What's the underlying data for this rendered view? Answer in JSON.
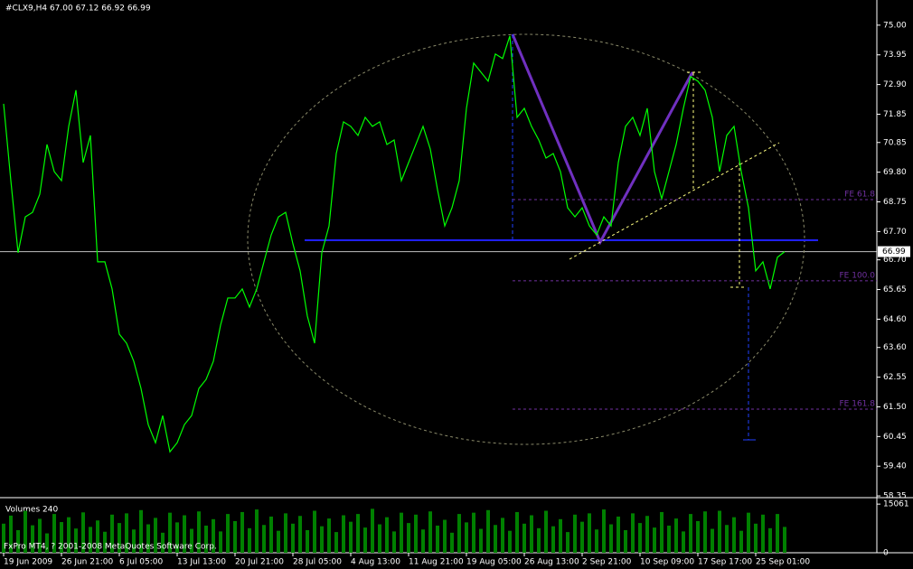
{
  "chart_data": [
    {
      "type": "line",
      "title": "#CLX9,H4  67.00 67.12 66.92 66.99",
      "footer": "FxPro MT4, ? 2001-2008 MetaQuotes Software Corp.",
      "categories": [
        "19 Jun 2009",
        null,
        null,
        null,
        null,
        null,
        null,
        null,
        "26 Jun 21:00",
        null,
        null,
        null,
        null,
        null,
        null,
        null,
        "6 Jul 05:00",
        null,
        null,
        null,
        null,
        null,
        null,
        null,
        "13 Jul 13:00",
        null,
        null,
        null,
        null,
        null,
        null,
        null,
        "20 Jul 21:00",
        null,
        null,
        null,
        null,
        null,
        null,
        null,
        "28 Jul 05:00",
        null,
        null,
        null,
        null,
        null,
        null,
        null,
        "4 Aug 13:00",
        null,
        null,
        null,
        null,
        null,
        null,
        null,
        "11 Aug 21:00",
        null,
        null,
        null,
        null,
        null,
        null,
        null,
        "19 Aug 05:00",
        null,
        null,
        null,
        null,
        null,
        null,
        null,
        "26 Aug 13:00",
        null,
        null,
        null,
        null,
        null,
        null,
        null,
        "2 Sep 21:00",
        null,
        null,
        null,
        null,
        null,
        null,
        null,
        "10 Sep 09:00",
        null,
        null,
        null,
        null,
        null,
        null,
        null,
        "17 Sep 17:00",
        null,
        null,
        null,
        null,
        null,
        null,
        null,
        "25 Sep 01:00",
        null,
        null,
        null,
        null
      ],
      "values": [
        72.22,
        69.5,
        66.95,
        68.22,
        68.38,
        69.02,
        70.78,
        69.82,
        69.5,
        71.42,
        72.7,
        70.14,
        71.1,
        66.63,
        66.63,
        65.67,
        64.07,
        63.75,
        63.11,
        62.15,
        60.87,
        60.23,
        61.19,
        59.91,
        60.23,
        60.87,
        61.19,
        62.15,
        62.47,
        63.11,
        64.39,
        65.35,
        65.35,
        65.67,
        65.03,
        65.67,
        66.63,
        67.58,
        68.22,
        68.38,
        67.27,
        66.31,
        64.71,
        63.75,
        66.95,
        67.9,
        70.46,
        71.58,
        71.42,
        71.1,
        71.74,
        71.42,
        71.58,
        70.78,
        70.94,
        69.5,
        70.14,
        70.78,
        71.42,
        70.62,
        69.18,
        67.9,
        68.54,
        69.5,
        72.06,
        73.66,
        73.34,
        73.02,
        73.98,
        73.82,
        74.62,
        71.74,
        72.06,
        71.42,
        70.94,
        70.3,
        70.46,
        69.82,
        68.54,
        68.22,
        68.54,
        67.9,
        67.58,
        68.22,
        67.9,
        70.14,
        71.42,
        71.74,
        71.1,
        72.06,
        69.82,
        68.86,
        69.82,
        70.78,
        72.06,
        73.18,
        73.02,
        72.7,
        71.74,
        69.82,
        71.1,
        71.42,
        69.82,
        68.54,
        66.31,
        66.63,
        65.67,
        66.79,
        66.99
      ],
      "color": "#00ff00",
      "ylim": [
        58.32,
        75.89
      ],
      "yticks": [
        {
          "value": 75,
          "label": "75.00"
        },
        73.95,
        {
          "value": 72.9,
          "label": "72.90"
        },
        71.85,
        70.85,
        {
          "value": 69.8,
          "label": "69.80"
        },
        68.75,
        {
          "value": 67.7,
          "label": "67.70"
        },
        {
          "value": 66.7,
          "label": "66.70"
        },
        65.65,
        {
          "value": 64.6,
          "label": "64.60"
        },
        {
          "value": 63.6,
          "label": "63.60"
        },
        62.55,
        {
          "value": 61.5,
          "label": "61.50"
        },
        60.45,
        {
          "value": 59.4,
          "label": "59.40"
        },
        58.35
      ],
      "fib_levels": [
        {
          "label": "FE 61.8",
          "value": 68.83
        },
        {
          "label": "FE 100.0",
          "value": 65.96
        },
        {
          "label": "FE 161.8",
          "value": 61.42
        }
      ]
    },
    {
      "type": "bar",
      "title": "Volumes 240",
      "color": "#008000",
      "values": [
        9000,
        11500,
        7000,
        13000,
        8500,
        10500,
        6000,
        12000,
        9500,
        11000,
        7500,
        12500,
        8000,
        10000,
        6500,
        11800,
        9200,
        12200,
        7200,
        13200,
        8800,
        10800,
        6200,
        12400,
        9400,
        11600,
        7400,
        12800,
        8400,
        10400,
        6600,
        12000,
        9800,
        12600,
        7600,
        13400,
        8600,
        11200,
        6800,
        12200,
        9000,
        11400,
        7000,
        13000,
        8200,
        10600,
        6400,
        11600,
        9600,
        12000,
        7800,
        13600,
        8800,
        11000,
        6600,
        12400,
        9200,
        11800,
        7200,
        12800,
        8400,
        10200,
        6200,
        12000,
        9400,
        12400,
        7400,
        13200,
        8600,
        10800,
        6800,
        12600,
        9000,
        11600,
        7600,
        13000,
        8200,
        10400,
        6400,
        11800,
        9600,
        12200,
        7200,
        13400,
        8800,
        11200,
        7000,
        12200,
        9200,
        11400,
        7800,
        12600,
        8400,
        10600,
        6600,
        12000,
        9800,
        12800,
        7400,
        13000,
        8600,
        11000,
        6800,
        12400,
        9000,
        11800,
        7600,
        12000,
        8000
      ],
      "ylim": [
        0,
        16500
      ],
      "yticks": [
        15061,
        0
      ]
    }
  ]
}
